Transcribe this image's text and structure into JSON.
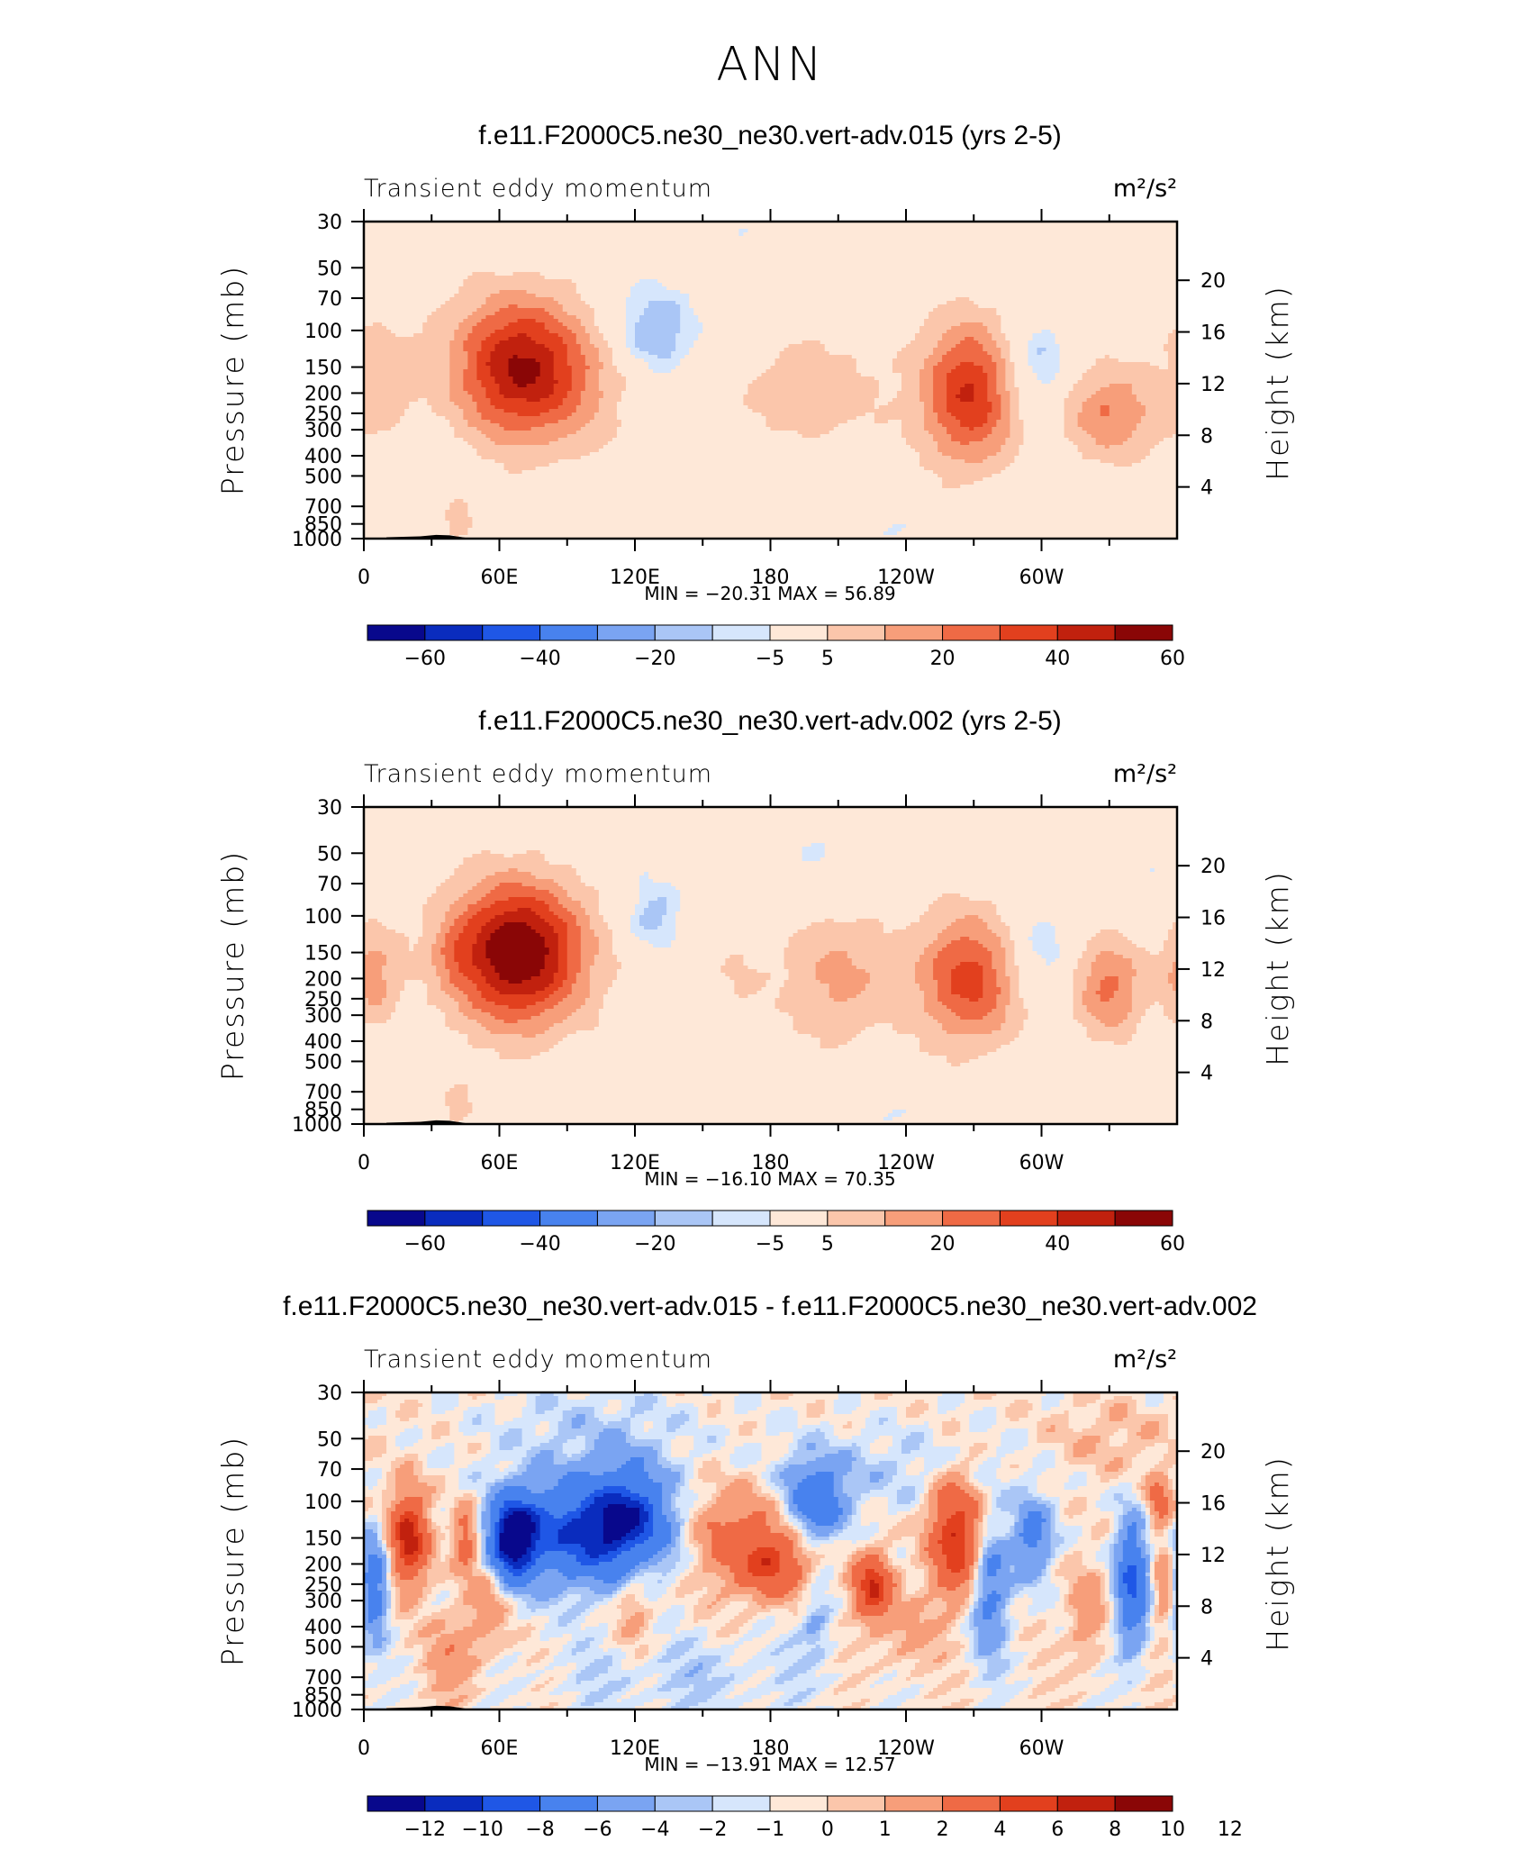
{
  "figure": {
    "title": "ANN"
  },
  "colors": {
    "palette": [
      "#08088c",
      "#0a2cbe",
      "#1f57e6",
      "#4882ee",
      "#7aa4f2",
      "#aac6f6",
      "#d6e6fc",
      "#fee8d8",
      "#fbc6ab",
      "#f79e7a",
      "#ef6a45",
      "#e2401e",
      "#c1210e",
      "#8a0606"
    ]
  },
  "chart_data": [
    {
      "type": "heatmap",
      "title": "f.e11.F2000C5.ne30_ne30.vert-adv.015 (yrs 2-5)",
      "left_title": "Transient eddy momentum",
      "units": "m²/s²",
      "ylabel": "Pressure (mb)",
      "ylabel_right": "Height (km)",
      "x_tick_labels": [
        "0",
        "60E",
        "120E",
        "180",
        "120W",
        "60W"
      ],
      "y_tick_labels": [
        "30",
        "50",
        "70",
        "100",
        "150",
        "200",
        "250",
        "300",
        "400",
        "500",
        "700",
        "850",
        "1000"
      ],
      "y_right_tick_labels": [
        "20",
        "16",
        "12",
        "8",
        "4"
      ],
      "stats": "MIN = −20.31   MAX =   56.89",
      "colorbar_labels": [
        "−60",
        "−40",
        "−20",
        "−5",
        "5",
        "20",
        "40",
        "60"
      ],
      "contour_levels": [
        -70,
        -60,
        -50,
        -40,
        -30,
        -20,
        -10,
        -5,
        5,
        10,
        20,
        30,
        40,
        50,
        60,
        70
      ],
      "min": -20.31,
      "max": 56.89,
      "features": [
        {
          "lon": 68,
          "p": 150,
          "value": 56,
          "lon_w": 20,
          "p_w": 0.55
        },
        {
          "lon": 95,
          "p": 180,
          "value": 12,
          "lon_w": 18,
          "p_w": 0.5
        },
        {
          "lon": 8,
          "p": 180,
          "value": 14,
          "lon_w": 12,
          "p_w": 0.55
        },
        {
          "lon": 128,
          "p": 100,
          "value": -20,
          "lon_w": 14,
          "p_w": 0.35
        },
        {
          "lon": 198,
          "p": 200,
          "value": 16,
          "lon_w": 22,
          "p_w": 0.45
        },
        {
          "lon": 268,
          "p": 200,
          "value": 48,
          "lon_w": 15,
          "p_w": 0.55
        },
        {
          "lon": 297,
          "p": 150,
          "value": -17,
          "lon_w": 11,
          "p_w": 0.4
        },
        {
          "lon": 330,
          "p": 250,
          "value": 28,
          "lon_w": 14,
          "p_w": 0.35
        },
        {
          "lon": 42,
          "p": 800,
          "value": 14,
          "lon_w": 5,
          "p_w": 0.18
        },
        {
          "lon": 195,
          "p": 450,
          "value": -7,
          "lon_w": 25,
          "p_w": 0.25
        },
        {
          "lon": 160,
          "p": 35,
          "value": -6,
          "lon_w": 20,
          "p_w": 0.35
        },
        {
          "lon": 100,
          "p": 35,
          "value": -6,
          "lon_w": 25,
          "p_w": 0.3
        },
        {
          "lon": 230,
          "p": 900,
          "value": -6,
          "lon_w": 40,
          "p_w": 0.25
        },
        {
          "lon": 20,
          "p": 500,
          "value": -6,
          "lon_w": 15,
          "p_w": 0.4
        }
      ]
    },
    {
      "type": "heatmap",
      "title": "f.e11.F2000C5.ne30_ne30.vert-adv.002 (yrs 2-5)",
      "left_title": "Transient eddy momentum",
      "units": "m²/s²",
      "ylabel": "Pressure (mb)",
      "ylabel_right": "Height (km)",
      "x_tick_labels": [
        "0",
        "60E",
        "120E",
        "180",
        "120W",
        "60W"
      ],
      "y_tick_labels": [
        "30",
        "50",
        "70",
        "100",
        "150",
        "200",
        "250",
        "300",
        "400",
        "500",
        "700",
        "850",
        "1000"
      ],
      "y_right_tick_labels": [
        "20",
        "16",
        "12",
        "8",
        "4"
      ],
      "stats": "MIN = −16.10   MAX =   70.35",
      "colorbar_labels": [
        "−60",
        "−40",
        "−20",
        "−5",
        "5",
        "20",
        "40",
        "60"
      ],
      "contour_levels": [
        -70,
        -60,
        -50,
        -40,
        -30,
        -20,
        -10,
        -5,
        5,
        10,
        20,
        30,
        40,
        50,
        60,
        70
      ],
      "min": -16.1,
      "max": 70.35,
      "features": [
        {
          "lon": 68,
          "p": 150,
          "value": 70,
          "lon_w": 21,
          "p_w": 0.55
        },
        {
          "lon": 4,
          "p": 190,
          "value": 22,
          "lon_w": 8,
          "p_w": 0.4
        },
        {
          "lon": 40,
          "p": 150,
          "value": 10,
          "lon_w": 6,
          "p_w": 0.2
        },
        {
          "lon": 128,
          "p": 100,
          "value": -16,
          "lon_w": 10,
          "p_w": 0.28
        },
        {
          "lon": 210,
          "p": 200,
          "value": 20,
          "lon_w": 18,
          "p_w": 0.5
        },
        {
          "lon": 268,
          "p": 200,
          "value": 42,
          "lon_w": 16,
          "p_w": 0.5
        },
        {
          "lon": 298,
          "p": 150,
          "value": -15,
          "lon_w": 11,
          "p_w": 0.35
        },
        {
          "lon": 330,
          "p": 220,
          "value": 30,
          "lon_w": 11,
          "p_w": 0.38
        },
        {
          "lon": 42,
          "p": 800,
          "value": 12,
          "lon_w": 5,
          "p_w": 0.18
        },
        {
          "lon": 165,
          "p": 200,
          "value": 8,
          "lon_w": 8,
          "p_w": 0.3
        },
        {
          "lon": 200,
          "p": 50,
          "value": -7,
          "lon_w": 20,
          "p_w": 0.35
        },
        {
          "lon": 110,
          "p": 40,
          "value": -6,
          "lon_w": 25,
          "p_w": 0.35
        },
        {
          "lon": 230,
          "p": 900,
          "value": -6,
          "lon_w": 40,
          "p_w": 0.25
        },
        {
          "lon": 355,
          "p": 60,
          "value": -6,
          "lon_w": 15,
          "p_w": 0.4
        }
      ]
    },
    {
      "type": "heatmap",
      "title": "f.e11.F2000C5.ne30_ne30.vert-adv.015 - f.e11.F2000C5.ne30_ne30.vert-adv.002",
      "left_title": "Transient eddy momentum",
      "units": "m²/s²",
      "ylabel": "Pressure (mb)",
      "ylabel_right": "Height (km)",
      "x_tick_labels": [
        "0",
        "60E",
        "120E",
        "180",
        "120W",
        "60W"
      ],
      "y_tick_labels": [
        "30",
        "50",
        "70",
        "100",
        "150",
        "200",
        "250",
        "300",
        "400",
        "500",
        "700",
        "850",
        "1000"
      ],
      "y_right_tick_labels": [
        "20",
        "16",
        "12",
        "8",
        "4"
      ],
      "stats": "MIN = −13.91   MAX =   12.57",
      "colorbar_labels": [
        "−12",
        "−10",
        "−8",
        "−6",
        "−4",
        "−2",
        "−1",
        "0",
        "1",
        "2",
        "4",
        "6",
        "8",
        "10",
        "12"
      ],
      "contour_levels": [
        -14,
        -12,
        -10,
        -8,
        -6,
        -4,
        -2,
        -1,
        0,
        1,
        2,
        4,
        6,
        8,
        10,
        12,
        14
      ],
      "min": -13.91,
      "max": 12.57,
      "features": [
        {
          "lon": 20,
          "p": 150,
          "value": 11,
          "lon_w": 6,
          "p_w": 0.35
        },
        {
          "lon": 4,
          "p": 250,
          "value": -7,
          "lon_w": 5,
          "p_w": 0.4
        },
        {
          "lon": 45,
          "p": 150,
          "value": 6,
          "lon_w": 4,
          "p_w": 0.25
        },
        {
          "lon": 66,
          "p": 150,
          "value": -13.9,
          "lon_w": 7,
          "p_w": 0.3
        },
        {
          "lon": 95,
          "p": 140,
          "value": -10,
          "lon_w": 22,
          "p_w": 0.4
        },
        {
          "lon": 118,
          "p": 120,
          "value": -8,
          "lon_w": 12,
          "p_w": 0.4
        },
        {
          "lon": 165,
          "p": 150,
          "value": 5,
          "lon_w": 14,
          "p_w": 0.4
        },
        {
          "lon": 182,
          "p": 200,
          "value": 7,
          "lon_w": 10,
          "p_w": 0.25
        },
        {
          "lon": 200,
          "p": 100,
          "value": -7,
          "lon_w": 9,
          "p_w": 0.3
        },
        {
          "lon": 225,
          "p": 260,
          "value": 10,
          "lon_w": 6,
          "p_w": 0.25
        },
        {
          "lon": 262,
          "p": 150,
          "value": 10,
          "lon_w": 8,
          "p_w": 0.45
        },
        {
          "lon": 277,
          "p": 260,
          "value": -6,
          "lon_w": 6,
          "p_w": 0.5
        },
        {
          "lon": 296,
          "p": 150,
          "value": -6,
          "lon_w": 6,
          "p_w": 0.3
        },
        {
          "lon": 340,
          "p": 250,
          "value": -9,
          "lon_w": 5,
          "p_w": 0.5
        },
        {
          "lon": 352,
          "p": 100,
          "value": 5,
          "lon_w": 4,
          "p_w": 0.2
        },
        {
          "lon": 355,
          "p": 260,
          "value": 4,
          "lon_w": 4,
          "p_w": 0.35
        },
        {
          "lon": 55,
          "p": 300,
          "value": 3,
          "lon_w": 6,
          "p_w": 0.4
        },
        {
          "lon": 120,
          "p": 280,
          "value": 3,
          "lon_w": 6,
          "p_w": 0.4
        },
        {
          "lon": 40,
          "p": 550,
          "value": 3,
          "lon_w": 8,
          "p_w": 0.35
        },
        {
          "lon": 200,
          "p": 380,
          "value": -3,
          "lon_w": 5,
          "p_w": 0.25
        },
        {
          "lon": 240,
          "p": 450,
          "value": 2,
          "lon_w": 10,
          "p_w": 0.3
        },
        {
          "lon": 320,
          "p": 350,
          "value": 3,
          "lon_w": 6,
          "p_w": 0.4
        },
        {
          "lon": 100,
          "p": 45,
          "value": -1.5,
          "lon_w": 30,
          "p_w": 0.35
        },
        {
          "lon": 230,
          "p": 70,
          "value": -1.5,
          "lon_w": 40,
          "p_w": 0.3
        },
        {
          "lon": 330,
          "p": 50,
          "value": 1.5,
          "lon_w": 20,
          "p_w": 0.3
        },
        {
          "lon": 140,
          "p": 700,
          "value": -1.5,
          "lon_w": 40,
          "p_w": 0.3
        }
      ]
    }
  ]
}
